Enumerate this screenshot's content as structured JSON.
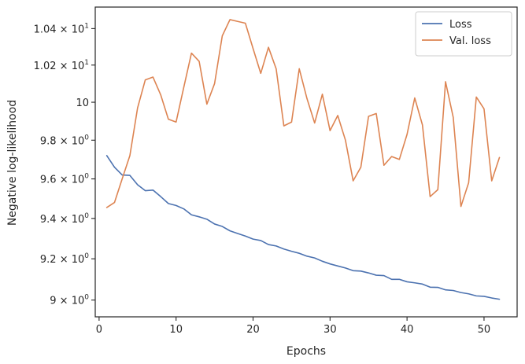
{
  "chart_data": {
    "type": "line",
    "title": "",
    "xlabel": "Epochs",
    "ylabel": "Negative log-likelihood",
    "x_scale": "linear",
    "y_scale": "log",
    "xlim": [
      -0.5,
      54.3
    ],
    "ylim": [
      8.92,
      10.52
    ],
    "x_ticks": [
      0,
      10,
      20,
      30,
      40,
      50
    ],
    "x_tick_labels": [
      "0",
      "10",
      "20",
      "30",
      "40",
      "50"
    ],
    "y_ticks": [
      9.0,
      9.2,
      9.4,
      9.6,
      9.8,
      10.0,
      10.2,
      10.4
    ],
    "y_tick_labels": [
      {
        "mant": "9",
        "exp": "0"
      },
      {
        "mant": "9.2",
        "exp": "0"
      },
      {
        "mant": "9.4",
        "exp": "0"
      },
      {
        "mant": "9.6",
        "exp": "0"
      },
      {
        "mant": "9.8",
        "exp": "0"
      },
      {
        "mant": "10",
        "exp": ""
      },
      {
        "mant": "1.02",
        "exp": "1"
      },
      {
        "mant": "1.04",
        "exp": "1"
      }
    ],
    "grid": false,
    "legend_position": "top-right",
    "x": [
      1,
      2,
      3,
      4,
      5,
      6,
      7,
      8,
      9,
      10,
      11,
      12,
      13,
      14,
      15,
      16,
      17,
      18,
      19,
      20,
      21,
      22,
      23,
      24,
      25,
      26,
      27,
      28,
      29,
      30,
      31,
      32,
      33,
      34,
      35,
      36,
      37,
      38,
      39,
      40,
      41,
      42,
      43,
      44,
      45,
      46,
      47,
      48,
      49,
      50,
      51,
      52
    ],
    "series": [
      {
        "name": "Loss",
        "color": "#4c72b0",
        "values": [
          9.72,
          9.66,
          9.62,
          9.618,
          9.57,
          9.54,
          9.543,
          9.51,
          9.475,
          9.465,
          9.448,
          9.418,
          9.408,
          9.396,
          9.372,
          9.36,
          9.338,
          9.325,
          9.312,
          9.297,
          9.29,
          9.27,
          9.263,
          9.248,
          9.237,
          9.227,
          9.213,
          9.204,
          9.188,
          9.175,
          9.165,
          9.155,
          9.142,
          9.14,
          9.131,
          9.12,
          9.118,
          9.1,
          9.1,
          9.088,
          9.083,
          9.077,
          9.062,
          9.061,
          9.049,
          9.046,
          9.036,
          9.03,
          9.02,
          9.018,
          9.01,
          9.004
        ]
      },
      {
        "name": "Val. loss",
        "color": "#dd8452",
        "values": [
          9.455,
          9.48,
          9.6,
          9.72,
          9.97,
          10.12,
          10.135,
          10.04,
          9.91,
          9.895,
          10.08,
          10.265,
          10.22,
          9.99,
          10.1,
          10.36,
          10.45,
          10.44,
          10.43,
          10.29,
          10.155,
          10.297,
          10.18,
          9.875,
          9.895,
          10.18,
          10.02,
          9.89,
          10.043,
          9.85,
          9.93,
          9.8,
          9.59,
          9.66,
          9.925,
          9.94,
          9.67,
          9.715,
          9.7,
          9.83,
          10.023,
          9.88,
          9.51,
          9.545,
          10.11,
          9.92,
          9.46,
          9.58,
          10.028,
          9.965,
          9.59,
          9.71
        ]
      }
    ]
  }
}
